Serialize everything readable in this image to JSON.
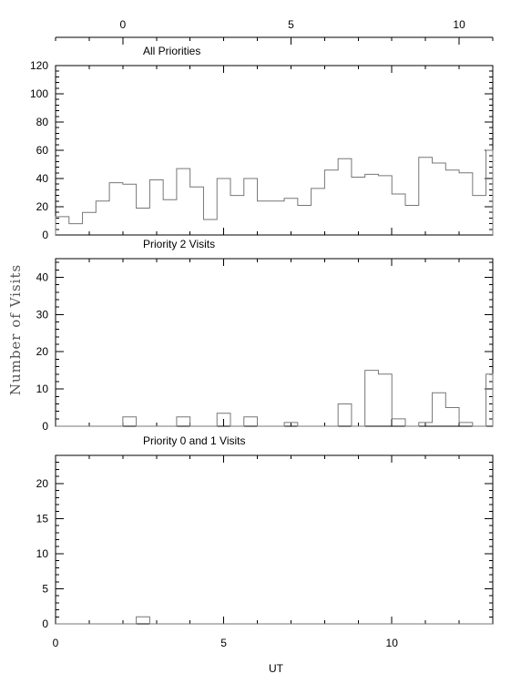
{
  "chart_data": {
    "type": "histogram",
    "ylabel": "Number of Visits",
    "xlabel": "UT",
    "top_axis": {
      "ticks": [
        0,
        5,
        10
      ],
      "xlim": [
        -2,
        11
      ]
    },
    "bottom_axis": {
      "ticks": [
        0,
        5,
        10
      ],
      "xlim": [
        0,
        13
      ]
    },
    "bin_width": 0.4,
    "panels": [
      {
        "title": "All Priorities",
        "ylim": [
          0,
          120
        ],
        "yticks": [
          0,
          20,
          40,
          60,
          80,
          100,
          120
        ],
        "values": [
          13,
          8,
          16,
          24,
          37,
          36,
          19,
          39,
          25,
          47,
          34,
          11,
          40,
          28,
          40,
          24,
          24,
          26,
          21,
          33,
          46,
          54,
          41,
          43,
          42,
          29,
          21,
          55,
          51,
          46,
          44,
          28,
          60
        ]
      },
      {
        "title": "Priority 2 Visits",
        "ylim": [
          0,
          45
        ],
        "yticks": [
          0,
          10,
          20,
          30,
          40
        ],
        "values": [
          0,
          0,
          0,
          0,
          0,
          2.5,
          0,
          0,
          0,
          2.5,
          0,
          0,
          3.5,
          0,
          2.5,
          0,
          0,
          1,
          0,
          0,
          0,
          6,
          0,
          15,
          14,
          2,
          0,
          1,
          9,
          5,
          1,
          0,
          14
        ]
      },
      {
        "title": "Priority 0 and 1 Visits",
        "ylim": [
          0,
          24
        ],
        "yticks": [
          0,
          5,
          10,
          15,
          20
        ],
        "values": [
          0,
          0,
          0,
          0,
          0,
          0,
          1,
          0,
          0,
          0,
          0,
          0,
          0,
          0,
          0,
          0,
          0,
          0,
          0,
          0,
          0,
          0,
          0,
          0,
          0,
          0,
          0,
          0,
          0,
          0,
          0,
          0,
          0
        ]
      }
    ]
  }
}
